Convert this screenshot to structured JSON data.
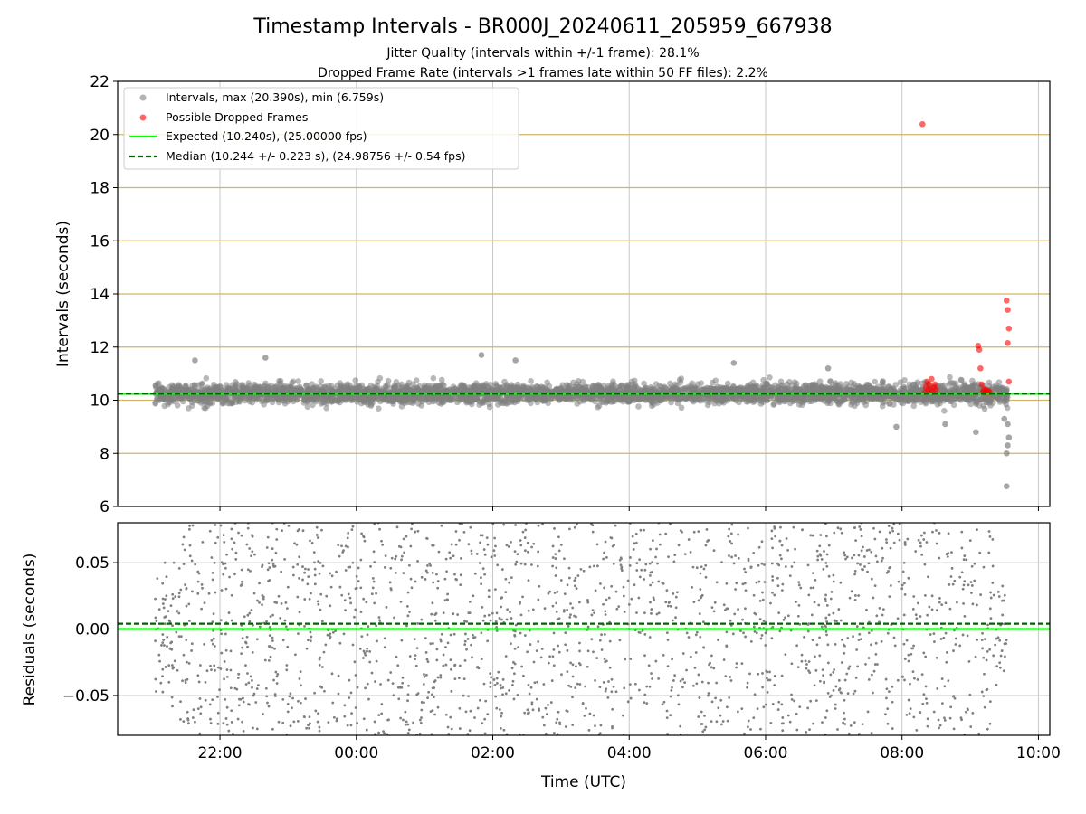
{
  "title": "Timestamp Intervals - BR000J_20240611_205959_667938",
  "subtitle_lines": [
    "Jitter Quality (intervals within +/-1 frame): 28.1%",
    "Dropped Frame Rate (intervals >1 frames late within 50 FF files): 2.2%"
  ],
  "colors": {
    "intervals": "#808080",
    "dropped": "#ff0000",
    "expected": "#00ff00",
    "median": "#006400",
    "frame_grid": "#d2b465",
    "grid": "#c8c8c8"
  },
  "chart_data": [
    {
      "type": "scatter",
      "panel": "intervals",
      "ylabel": "Intervals (seconds)",
      "ylim": [
        6,
        22
      ],
      "yticks": [
        "6",
        "8",
        "10",
        "12",
        "14",
        "16",
        "18",
        "20",
        "22"
      ],
      "xlim": [
        "20:30",
        "10:10"
      ],
      "xticks": [
        "22:00",
        "00:00",
        "02:00",
        "04:00",
        "06:00",
        "08:00",
        "10:00"
      ],
      "grid": true,
      "legend_placement": "upper left",
      "legend": [
        "Intervals, max (20.390s), min (6.759s)",
        "Possible Dropped Frames",
        "Expected (10.240s), (25.00000 fps)",
        "Median (10.244 +/- 0.223 s), (24.98756 +/- 0.54 fps)"
      ],
      "expected_interval": 10.24,
      "median_interval": 10.244,
      "interval_max": 20.39,
      "interval_min": 6.759,
      "interval_spread_typical": [
        9.3,
        11.1
      ],
      "interval_points_approx_count": 4000,
      "outliers": [
        {
          "x": "21:38",
          "y": 11.5
        },
        {
          "x": "22:40",
          "y": 11.6
        },
        {
          "x": "01:50",
          "y": 11.7
        },
        {
          "x": "02:20",
          "y": 11.5
        },
        {
          "x": "05:32",
          "y": 11.4
        },
        {
          "x": "06:55",
          "y": 11.2
        },
        {
          "x": "07:55",
          "y": 9.0
        },
        {
          "x": "08:38",
          "y": 9.1
        },
        {
          "x": "09:05",
          "y": 8.8
        },
        {
          "x": "09:30",
          "y": 9.3
        },
        {
          "x": "09:32",
          "y": 8.0
        },
        {
          "x": "09:33",
          "y": 8.3
        },
        {
          "x": "09:34",
          "y": 8.6
        },
        {
          "x": "09:32",
          "y": 6.759
        },
        {
          "x": "09:33",
          "y": 9.1
        }
      ],
      "dropped_frames": [
        {
          "x": "08:18",
          "y": 20.39
        },
        {
          "x": "08:20",
          "y": 10.3
        },
        {
          "x": "08:21",
          "y": 10.5
        },
        {
          "x": "08:22",
          "y": 10.7
        },
        {
          "x": "08:23",
          "y": 10.4
        },
        {
          "x": "08:24",
          "y": 10.6
        },
        {
          "x": "08:25",
          "y": 10.4
        },
        {
          "x": "08:26",
          "y": 10.8
        },
        {
          "x": "08:27",
          "y": 10.3
        },
        {
          "x": "08:28",
          "y": 10.5
        },
        {
          "x": "08:29",
          "y": 10.6
        },
        {
          "x": "08:30",
          "y": 10.4
        },
        {
          "x": "09:07",
          "y": 12.05
        },
        {
          "x": "09:08",
          "y": 11.9
        },
        {
          "x": "09:09",
          "y": 11.2
        },
        {
          "x": "09:10",
          "y": 10.6
        },
        {
          "x": "09:11",
          "y": 10.3
        },
        {
          "x": "09:12",
          "y": 10.4
        },
        {
          "x": "09:13",
          "y": 10.3
        },
        {
          "x": "09:14",
          "y": 10.4
        },
        {
          "x": "09:15",
          "y": 10.3
        },
        {
          "x": "09:16",
          "y": 10.35
        },
        {
          "x": "09:17",
          "y": 10.3
        },
        {
          "x": "09:32",
          "y": 13.75
        },
        {
          "x": "09:33",
          "y": 13.4
        },
        {
          "x": "09:34",
          "y": 12.7
        },
        {
          "x": "09:33",
          "y": 12.15
        },
        {
          "x": "09:34",
          "y": 10.7
        }
      ]
    },
    {
      "type": "scatter",
      "panel": "residuals",
      "ylabel": "Residuals (seconds)",
      "xlabel": "Time (UTC)",
      "ylim": [
        -0.08,
        0.08
      ],
      "yticks": [
        "−0.05",
        "0.00",
        "0.05"
      ],
      "xlim": [
        "20:30",
        "10:10"
      ],
      "xticks": [
        "22:00",
        "00:00",
        "02:00",
        "04:00",
        "06:00",
        "08:00",
        "10:00"
      ],
      "grid": true,
      "expected_residual": 0.0,
      "median_residual": 0.004,
      "residual_points_approx_count": 2000,
      "residual_spread": [
        -0.08,
        0.08
      ]
    }
  ]
}
